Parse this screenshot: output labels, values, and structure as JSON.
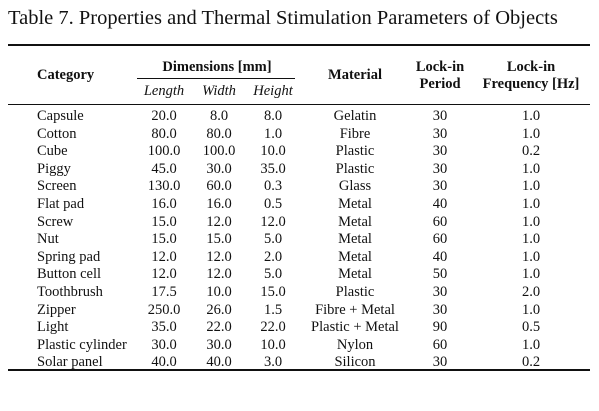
{
  "caption": "Table 7. Properties and Thermal Stimulation Parameters of Objects",
  "headers": {
    "category": "Category",
    "dimensions": "Dimensions [mm]",
    "length": "Length",
    "width": "Width",
    "height": "Height",
    "material": "Material",
    "lockin_period_line1": "Lock-in",
    "lockin_period_line2": "Period",
    "lockin_freq_line1": "Lock-in",
    "lockin_freq_line2": "Frequency [Hz]"
  },
  "rows": [
    {
      "category": "Capsule",
      "length": "20.0",
      "width": "8.0",
      "height": "8.0",
      "material": "Gelatin",
      "period": "30",
      "frequency": "1.0"
    },
    {
      "category": "Cotton",
      "length": "80.0",
      "width": "80.0",
      "height": "1.0",
      "material": "Fibre",
      "period": "30",
      "frequency": "1.0"
    },
    {
      "category": "Cube",
      "length": "100.0",
      "width": "100.0",
      "height": "10.0",
      "material": "Plastic",
      "period": "30",
      "frequency": "0.2"
    },
    {
      "category": "Piggy",
      "length": "45.0",
      "width": "30.0",
      "height": "35.0",
      "material": "Plastic",
      "period": "30",
      "frequency": "1.0"
    },
    {
      "category": "Screen",
      "length": "130.0",
      "width": "60.0",
      "height": "0.3",
      "material": "Glass",
      "period": "30",
      "frequency": "1.0"
    },
    {
      "category": "Flat pad",
      "length": "16.0",
      "width": "16.0",
      "height": "0.5",
      "material": "Metal",
      "period": "40",
      "frequency": "1.0"
    },
    {
      "category": "Screw",
      "length": "15.0",
      "width": "12.0",
      "height": "12.0",
      "material": "Metal",
      "period": "60",
      "frequency": "1.0"
    },
    {
      "category": "Nut",
      "length": "15.0",
      "width": "15.0",
      "height": "5.0",
      "material": "Metal",
      "period": "60",
      "frequency": "1.0"
    },
    {
      "category": "Spring pad",
      "length": "12.0",
      "width": "12.0",
      "height": "2.0",
      "material": "Metal",
      "period": "40",
      "frequency": "1.0"
    },
    {
      "category": "Button cell",
      "length": "12.0",
      "width": "12.0",
      "height": "5.0",
      "material": "Metal",
      "period": "50",
      "frequency": "1.0"
    },
    {
      "category": "Toothbrush",
      "length": "17.5",
      "width": "10.0",
      "height": "15.0",
      "material": "Plastic",
      "period": "30",
      "frequency": "2.0"
    },
    {
      "category": "Zipper",
      "length": "250.0",
      "width": "26.0",
      "height": "1.5",
      "material": "Fibre + Metal",
      "period": "30",
      "frequency": "1.0"
    },
    {
      "category": "Light",
      "length": "35.0",
      "width": "22.0",
      "height": "22.0",
      "material": "Plastic + Metal",
      "period": "90",
      "frequency": "0.5"
    },
    {
      "category": "Plastic cylinder",
      "length": "30.0",
      "width": "30.0",
      "height": "10.0",
      "material": "Nylon",
      "period": "60",
      "frequency": "1.0"
    },
    {
      "category": "Solar panel",
      "length": "40.0",
      "width": "40.0",
      "height": "3.0",
      "material": "Silicon",
      "period": "30",
      "frequency": "0.2"
    }
  ]
}
